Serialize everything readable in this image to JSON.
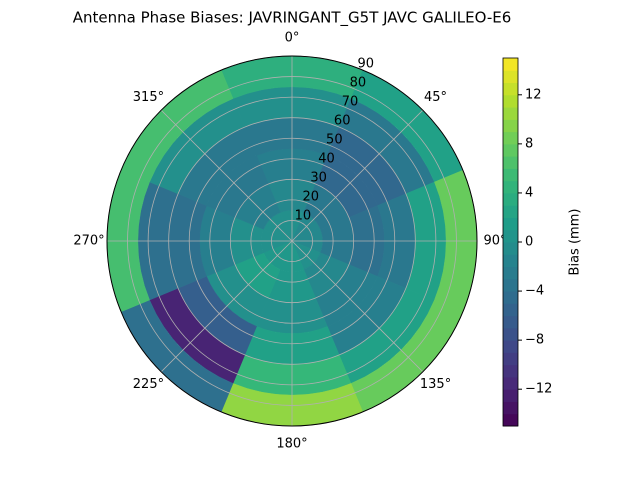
{
  "chart_data": {
    "type": "polar-contour",
    "title": "Antenna Phase Biases: JAVRINGANT_G5T  JAVC GALILEO-E6",
    "azimuth": [
      0,
      45,
      90,
      135,
      180,
      225,
      270,
      315
    ],
    "zenith": [
      7.5,
      22.5,
      37.5,
      52.5,
      67.5,
      82.5
    ],
    "values": [
      [
        0,
        -1,
        -2,
        -3,
        0,
        4
      ],
      [
        -1,
        -3,
        -5,
        -5,
        -3,
        2
      ],
      [
        -1,
        -3,
        -4,
        -3,
        2,
        8
      ],
      [
        0,
        -1,
        -2,
        -2,
        2,
        8
      ],
      [
        1,
        1,
        0,
        2,
        5,
        10
      ],
      [
        1,
        2,
        0,
        -6,
        -12,
        -4
      ],
      [
        0,
        0,
        -2,
        -4,
        -4,
        6
      ],
      [
        0,
        -2,
        -3,
        -3,
        0,
        6
      ]
    ],
    "colormap": "viridis",
    "rlim": [
      0,
      90
    ],
    "rticks": [
      10,
      20,
      30,
      40,
      50,
      60,
      70,
      80,
      90
    ],
    "thetaticks": [
      {
        "value": 0,
        "label": "0°"
      },
      {
        "value": 45,
        "label": "45°"
      },
      {
        "value": 90,
        "label": "90°"
      },
      {
        "value": 135,
        "label": "135°"
      },
      {
        "value": 180,
        "label": "180°"
      },
      {
        "value": 225,
        "label": "225°"
      },
      {
        "value": 270,
        "label": "270°"
      },
      {
        "value": 315,
        "label": "315°"
      }
    ],
    "grid": true,
    "colorbar_label": "Bias (mm)",
    "clim": [
      -15,
      15
    ],
    "cticks": [
      {
        "value": -12,
        "label": "−12"
      },
      {
        "value": -8,
        "label": "−8"
      },
      {
        "value": -4,
        "label": "−4"
      },
      0,
      4,
      8,
      12
    ]
  }
}
